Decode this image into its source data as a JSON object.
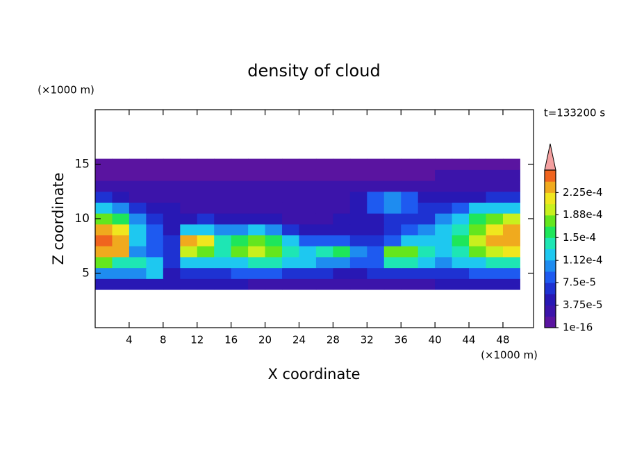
{
  "chart_data": {
    "type": "contour",
    "title": "density of cloud",
    "x_label": "X coordinate",
    "y_label": "Z coordinate",
    "x_unit": "(×1000 m)",
    "y_unit": "(×1000 m)",
    "annotation": "t=133200 s",
    "xlim": [
      0,
      51.6
    ],
    "xticks": [
      4,
      8,
      12,
      16,
      20,
      24,
      28,
      32,
      36,
      40,
      44,
      48
    ],
    "ylim": [
      0,
      20
    ],
    "yticks": [
      5,
      10,
      15
    ],
    "x": [
      1,
      3,
      5,
      7,
      9,
      11,
      13,
      15,
      17,
      19,
      21,
      23,
      25,
      27,
      29,
      31,
      33,
      35,
      37,
      39,
      41,
      43,
      45,
      47,
      49
    ],
    "y": [
      4,
      5,
      6,
      7,
      8,
      9,
      10,
      11,
      12,
      13,
      14,
      15
    ],
    "z": [
      [
        4e-05,
        4e-05,
        4e-05,
        4e-05,
        4e-05,
        4e-05,
        4e-05,
        4e-05,
        4e-05,
        3e-05,
        3e-05,
        3e-05,
        3e-05,
        3e-05,
        3e-05,
        3e-05,
        3e-05,
        3e-05,
        3e-05,
        3e-05,
        4e-05,
        4e-05,
        4e-05,
        4e-05,
        4e-05
      ],
      [
        0.00011,
        0.0001,
        0.00011,
        0.00012,
        4e-05,
        6e-05,
        6e-05,
        7e-05,
        8e-05,
        8e-05,
        8e-05,
        7e-05,
        6e-05,
        6e-05,
        5e-05,
        5e-05,
        6e-05,
        7e-05,
        6e-05,
        6e-05,
        6e-05,
        7e-05,
        8e-05,
        8e-05,
        8e-05
      ],
      [
        0.00017,
        0.00015,
        0.00014,
        0.00013,
        6e-05,
        0.00013,
        0.00012,
        0.00012,
        0.00013,
        0.00014,
        0.00014,
        0.00013,
        0.00012,
        0.00011,
        0.0001,
        8e-05,
        9e-05,
        0.00014,
        0.00015,
        0.00012,
        0.00011,
        0.00012,
        0.00013,
        0.00014,
        0.00014
      ],
      [
        0.00024,
        0.00023,
        0.0001,
        9e-05,
        7e-05,
        0.00019,
        0.00018,
        0.00015,
        0.00018,
        0.00019,
        0.00018,
        0.00015,
        0.00013,
        0.00014,
        0.00016,
        0.0001,
        8e-05,
        0.00017,
        0.00018,
        0.00014,
        0.00013,
        0.00015,
        0.00018,
        0.0002,
        0.00021
      ],
      [
        0.00025,
        0.00024,
        0.00012,
        8e-05,
        6e-05,
        0.00023,
        0.00022,
        0.00014,
        0.00016,
        0.00018,
        0.00016,
        0.00012,
        9e-05,
        8e-05,
        9e-05,
        7e-05,
        6e-05,
        9e-05,
        0.00012,
        0.00012,
        0.00013,
        0.00016,
        0.0002,
        0.00023,
        0.00024
      ],
      [
        0.00023,
        0.00022,
        0.00013,
        9e-05,
        5e-05,
        0.00012,
        0.00013,
        0.0001,
        0.00011,
        0.00012,
        0.0001,
        7e-05,
        5e-05,
        4e-05,
        4e-05,
        5e-05,
        5e-05,
        7e-05,
        8e-05,
        0.0001,
        0.00012,
        0.00014,
        0.00018,
        0.00021,
        0.00023
      ],
      [
        0.00018,
        0.00016,
        0.0001,
        7e-05,
        5e-05,
        5e-05,
        6e-05,
        5e-05,
        5e-05,
        5e-05,
        4e-05,
        3e-05,
        3e-05,
        3e-05,
        4e-05,
        4e-05,
        5e-05,
        6e-05,
        6e-05,
        7e-05,
        0.0001,
        0.00013,
        0.00016,
        0.00017,
        0.00019
      ],
      [
        0.00012,
        0.0001,
        6e-05,
        5e-05,
        4e-05,
        3e-05,
        3e-05,
        3e-05,
        3e-05,
        2e-05,
        2e-05,
        2e-05,
        2e-05,
        3e-05,
        3e-05,
        5e-05,
        8e-05,
        0.00011,
        8e-05,
        6e-05,
        7e-05,
        9e-05,
        0.00012,
        0.00013,
        0.00013
      ],
      [
        6e-05,
        5e-05,
        3e-05,
        3e-05,
        2e-05,
        2e-05,
        2e-05,
        2e-05,
        2e-05,
        2e-05,
        2e-05,
        2e-05,
        2e-05,
        2e-05,
        2e-05,
        5e-05,
        9e-05,
        0.0001,
        9e-05,
        5e-05,
        4e-05,
        4e-05,
        5e-05,
        6e-05,
        7e-05
      ],
      [
        3e-05,
        3e-05,
        3e-05,
        3e-05,
        2e-05,
        2e-05,
        2e-05,
        2e-05,
        2e-05,
        2e-05,
        2e-05,
        2e-05,
        2e-05,
        2e-05,
        2e-05,
        3e-05,
        3e-05,
        3e-05,
        3e-05,
        3e-05,
        3e-05,
        3e-05,
        3e-05,
        3e-05,
        3e-05
      ],
      [
        1.5e-05,
        1.5e-05,
        1.5e-05,
        1.5e-05,
        1.5e-05,
        1.5e-05,
        1.5e-05,
        1.5e-05,
        1.5e-05,
        1.5e-05,
        1.5e-05,
        1.5e-05,
        1.5e-05,
        1.5e-05,
        1.5e-05,
        1.5e-05,
        1.5e-05,
        1.5e-05,
        1.5e-05,
        1.5e-05,
        2e-05,
        2e-05,
        2e-05,
        2e-05,
        2e-05
      ],
      [
        1e-05,
        1e-05,
        1e-05,
        1e-05,
        1e-05,
        1e-05,
        1e-05,
        1e-05,
        1e-05,
        1e-05,
        1e-05,
        1e-05,
        1e-05,
        1e-05,
        1e-05,
        1e-05,
        1e-05,
        1e-05,
        1e-05,
        1e-05,
        1e-05,
        1e-05,
        1e-05,
        1e-05,
        1e-05
      ]
    ],
    "colorbar": {
      "lim": [
        1e-16,
        0.0002625
      ],
      "colors": [
        "#5a14a0",
        "#3c14aa",
        "#2818b4",
        "#1e32d2",
        "#1e5af0",
        "#1e8cf0",
        "#1ec8f0",
        "#1ee6b4",
        "#1ee65a",
        "#64e61e",
        "#c8f01e",
        "#f0e61e",
        "#f0aa1e",
        "#f0641e"
      ],
      "extend_color": "#f4a0a0",
      "ticks": [
        {
          "value": 1e-16,
          "label": "1e-16"
        },
        {
          "value": 3.75e-05,
          "label": "3.75e-5"
        },
        {
          "value": 7.5e-05,
          "label": "7.5e-5"
        },
        {
          "value": 0.000112,
          "label": "1.12e-4"
        },
        {
          "value": 0.00015,
          "label": "1.5e-4"
        },
        {
          "value": 0.000188,
          "label": "1.88e-4"
        },
        {
          "value": 0.000225,
          "label": "2.25e-4"
        }
      ]
    }
  }
}
